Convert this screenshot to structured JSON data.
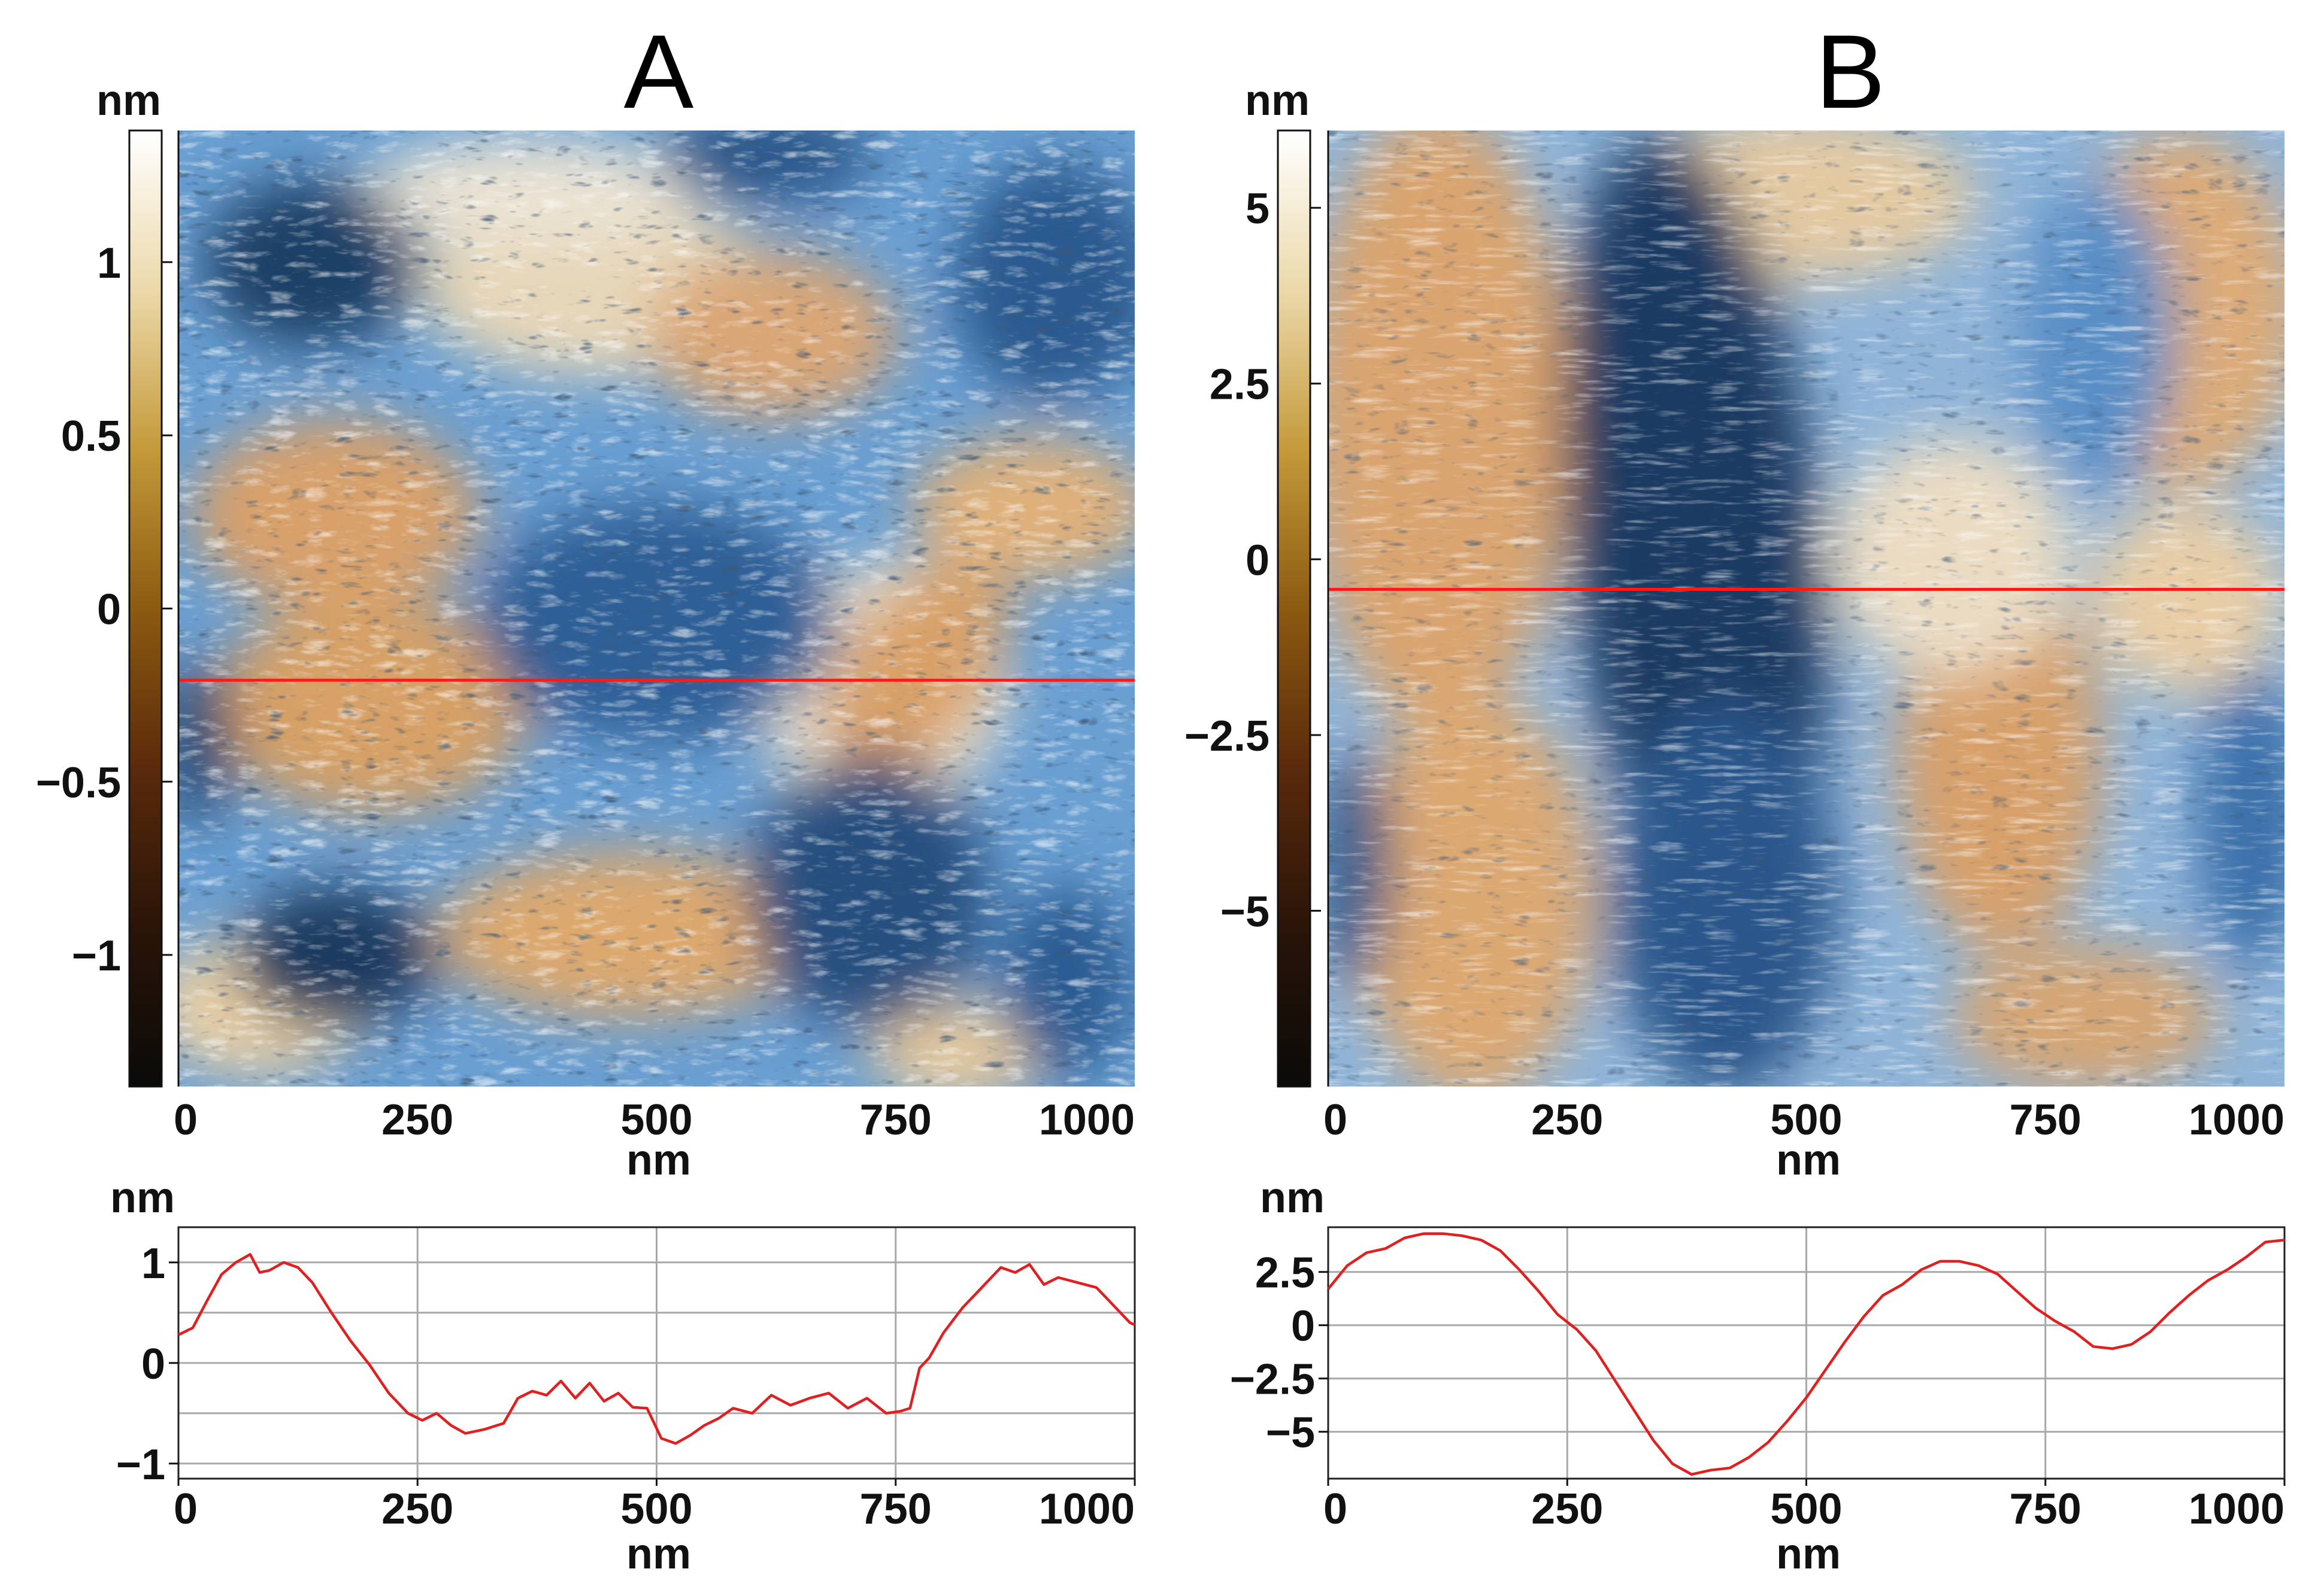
{
  "colors": {
    "colormap": [
      "#0a0a08",
      "#2a1408",
      "#5a2a0c",
      "#8c5a10",
      "#c49a3a",
      "#ecd9aa",
      "#ffffff"
    ],
    "surface_light": "#f2ead9",
    "surface_tan": "#c98a4a",
    "surface_blue": "#4a86c6",
    "surface_dark": "#1a2c44",
    "trace": "#e02020",
    "grid": "#a8a8a8"
  },
  "chart_data": [
    {
      "panel": "A",
      "type": "heatmap",
      "title": "A",
      "colorbar_unit": "nm",
      "colorbar_ticks": [
        "1",
        "0.5",
        "0",
        "−0.5",
        "−1"
      ],
      "colorbar_tick_values": [
        1,
        0.5,
        0,
        -0.5,
        -1
      ],
      "colorbar_range": [
        -1.38,
        1.38
      ],
      "x_ticks": [
        "0",
        "250",
        "500",
        "750",
        "1000"
      ],
      "x_tick_values": [
        0,
        250,
        500,
        750,
        1000
      ],
      "xlabel": "nm",
      "xlim": [
        0,
        1000
      ],
      "ylim": [
        0,
        1000
      ],
      "scan_line_y": 575
    },
    {
      "panel": "A",
      "type": "line",
      "title": "",
      "ylabel": "nm",
      "xlabel": "nm",
      "x_ticks": [
        "0",
        "250",
        "500",
        "750",
        "1000"
      ],
      "y_ticks": [
        "1",
        "0",
        "−1"
      ],
      "y_tick_values": [
        1,
        0,
        -1
      ],
      "xlim": [
        0,
        1000
      ],
      "ylim": [
        -1.15,
        1.35
      ],
      "grid_y": [
        1,
        0.5,
        0,
        -0.5,
        -1
      ],
      "x": [
        0,
        15,
        30,
        45,
        60,
        75,
        85,
        95,
        110,
        125,
        140,
        160,
        180,
        200,
        220,
        240,
        255,
        270,
        285,
        300,
        320,
        340,
        355,
        370,
        385,
        400,
        415,
        430,
        445,
        460,
        475,
        490,
        505,
        520,
        535,
        550,
        565,
        580,
        600,
        620,
        640,
        660,
        680,
        700,
        720,
        740,
        755,
        765,
        775,
        785,
        800,
        820,
        840,
        860,
        875,
        890,
        905,
        920,
        940,
        960,
        980,
        995,
        1000
      ],
      "y": [
        0.28,
        0.35,
        0.62,
        0.88,
        1.0,
        1.08,
        0.9,
        0.92,
        1.0,
        0.95,
        0.8,
        0.5,
        0.22,
        -0.02,
        -0.3,
        -0.5,
        -0.57,
        -0.5,
        -0.62,
        -0.7,
        -0.66,
        -0.6,
        -0.35,
        -0.28,
        -0.32,
        -0.18,
        -0.35,
        -0.2,
        -0.38,
        -0.3,
        -0.44,
        -0.45,
        -0.75,
        -0.8,
        -0.72,
        -0.62,
        -0.55,
        -0.45,
        -0.5,
        -0.32,
        -0.42,
        -0.35,
        -0.3,
        -0.45,
        -0.35,
        -0.5,
        -0.48,
        -0.45,
        -0.05,
        0.05,
        0.3,
        0.55,
        0.75,
        0.95,
        0.9,
        0.98,
        0.78,
        0.85,
        0.8,
        0.75,
        0.55,
        0.4,
        0.38
      ]
    },
    {
      "panel": "B",
      "type": "heatmap",
      "title": "B",
      "colorbar_unit": "nm",
      "colorbar_ticks": [
        "5",
        "2.5",
        "0",
        "−2.5",
        "−5"
      ],
      "colorbar_tick_values": [
        5,
        2.5,
        0,
        -2.5,
        -5
      ],
      "colorbar_range": [
        -7.5,
        6.1
      ],
      "x_ticks": [
        "0",
        "250",
        "500",
        "750",
        "1000"
      ],
      "x_tick_values": [
        0,
        250,
        500,
        750,
        1000
      ],
      "xlabel": "nm",
      "xlim": [
        0,
        1000
      ],
      "ylim": [
        0,
        1000
      ],
      "scan_line_y": 480
    },
    {
      "panel": "B",
      "type": "line",
      "title": "",
      "ylabel": "nm",
      "xlabel": "nm",
      "x_ticks": [
        "0",
        "250",
        "500",
        "750",
        "1000"
      ],
      "y_ticks": [
        "2.5",
        "0",
        "−2.5",
        "−5"
      ],
      "y_tick_values": [
        2.5,
        0,
        -2.5,
        -5
      ],
      "xlim": [
        0,
        1000
      ],
      "ylim": [
        -7.2,
        4.6
      ],
      "grid_y": [
        2.5,
        0,
        -2.5,
        -5
      ],
      "x": [
        0,
        20,
        40,
        60,
        80,
        100,
        120,
        140,
        160,
        180,
        200,
        220,
        240,
        260,
        280,
        300,
        320,
        340,
        360,
        380,
        400,
        420,
        440,
        460,
        480,
        500,
        520,
        540,
        560,
        580,
        600,
        620,
        640,
        660,
        680,
        700,
        720,
        740,
        760,
        780,
        800,
        820,
        840,
        860,
        880,
        900,
        920,
        940,
        960,
        980,
        1000
      ],
      "y": [
        1.7,
        2.8,
        3.4,
        3.6,
        4.1,
        4.3,
        4.3,
        4.2,
        4.0,
        3.5,
        2.6,
        1.6,
        0.5,
        -0.2,
        -1.2,
        -2.6,
        -4.0,
        -5.4,
        -6.5,
        -7.0,
        -6.8,
        -6.7,
        -6.2,
        -5.5,
        -4.5,
        -3.4,
        -2.1,
        -0.8,
        0.4,
        1.4,
        1.9,
        2.6,
        3.0,
        3.0,
        2.8,
        2.4,
        1.6,
        0.8,
        0.2,
        -0.3,
        -1.0,
        -1.1,
        -0.9,
        -0.3,
        0.6,
        1.4,
        2.1,
        2.6,
        3.2,
        3.9,
        4.0
      ]
    }
  ]
}
